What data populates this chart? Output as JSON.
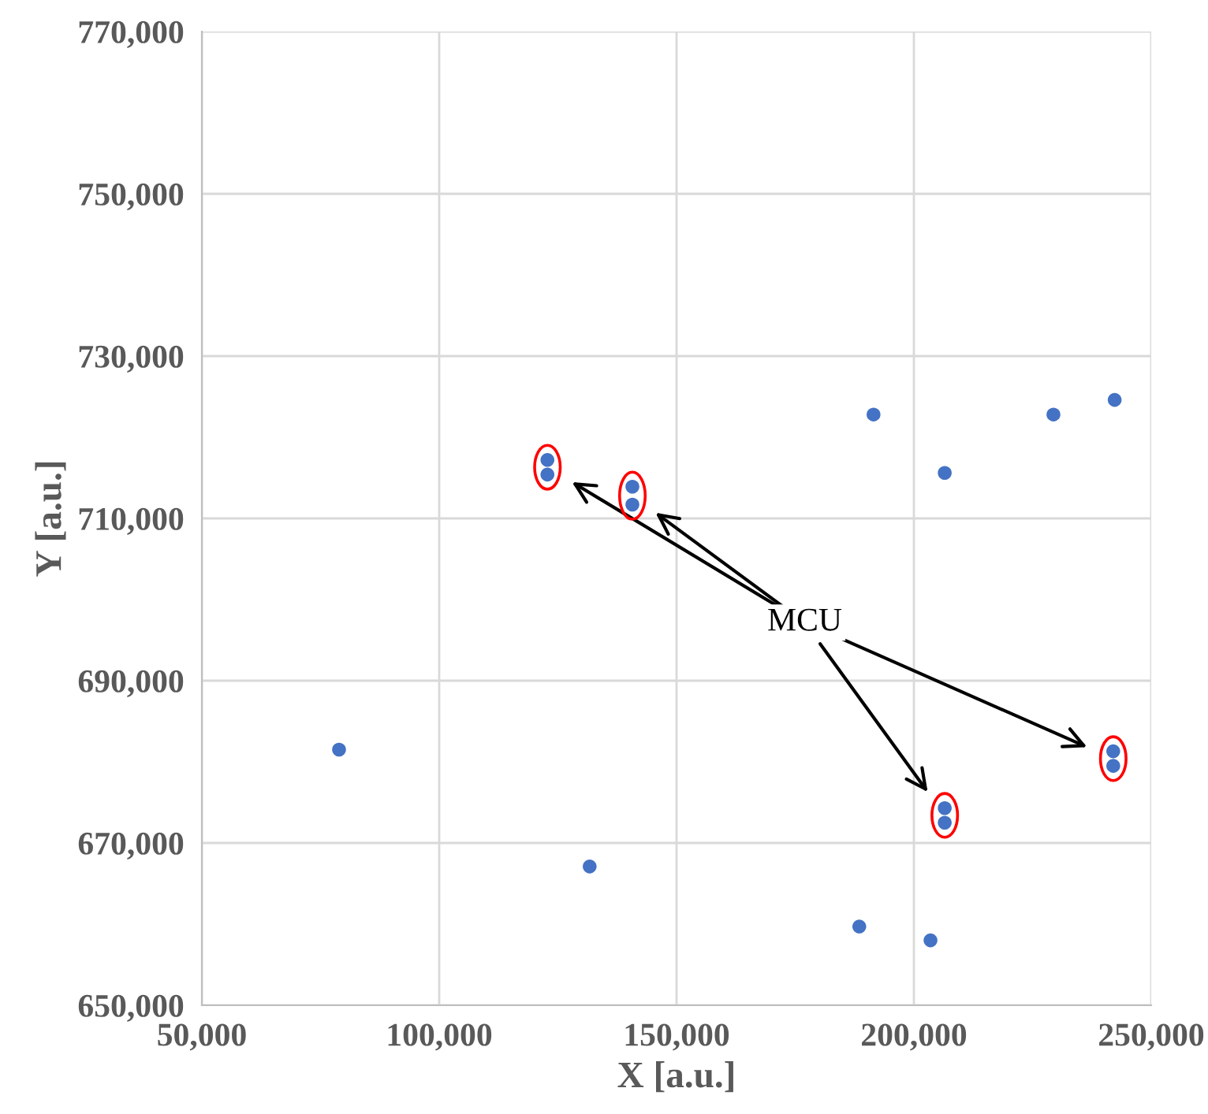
{
  "chart_data": {
    "type": "scatter",
    "xlabel": "X [a.u.]",
    "ylabel": "Y [a.u.]",
    "xlim": [
      50000,
      250000
    ],
    "ylim": [
      650000,
      770000
    ],
    "xticks": [
      {
        "value": 50000,
        "label": "50,000"
      },
      {
        "value": 100000,
        "label": "100,000"
      },
      {
        "value": 150000,
        "label": "150,000"
      },
      {
        "value": 200000,
        "label": "200,000"
      },
      {
        "value": 250000,
        "label": "250,000"
      }
    ],
    "yticks": [
      {
        "value": 650000,
        "label": "650,000"
      },
      {
        "value": 670000,
        "label": "670,000"
      },
      {
        "value": 690000,
        "label": "690,000"
      },
      {
        "value": 710000,
        "label": "710,000"
      },
      {
        "value": 730000,
        "label": "730,000"
      },
      {
        "value": 750000,
        "label": "750,000"
      },
      {
        "value": 770000,
        "label": "770,000"
      }
    ],
    "grid": true,
    "marker": "circle",
    "series": [
      {
        "color": "#4472c4",
        "x": [
          78900,
          131700,
          191500,
          206500,
          229400,
          242300,
          188500,
          203500
        ],
        "values": [
          681500,
          667100,
          722800,
          715600,
          722800,
          724600,
          659700,
          658000
        ]
      },
      {
        "name": "MCU",
        "color": "#4472c4",
        "x": [
          122800,
          122800,
          140700,
          140700,
          206500,
          206500,
          242000,
          242000
        ],
        "values": [
          717200,
          715400,
          713900,
          711700,
          674300,
          672500,
          681300,
          679500
        ]
      }
    ]
  }
}
